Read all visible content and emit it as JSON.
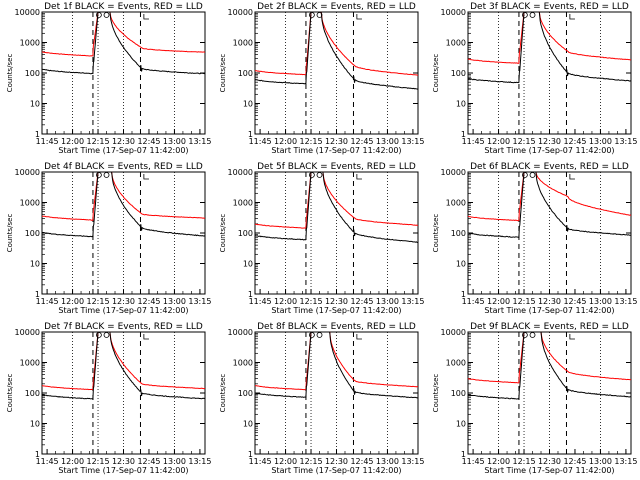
{
  "figure": {
    "xlabel": "Start Time (17-Sep-07 11:42:00)",
    "ylabel": "Counts/sec"
  },
  "chart_data": {
    "type": "line",
    "grid_rows": 3,
    "grid_cols": 3,
    "x_ticks": [
      "11:45",
      "12:00",
      "12:15",
      "12:30",
      "12:45",
      "13:00",
      "13:15"
    ],
    "x_tick_minutes": [
      3,
      18,
      33,
      48,
      63,
      78,
      93
    ],
    "xlim_minutes": [
      0,
      96
    ],
    "y_ticks": [
      "1",
      "10",
      "100",
      "1000",
      "10000"
    ],
    "y_tick_values": [
      1,
      10,
      100,
      1000,
      10000
    ],
    "ylim": [
      1,
      10000
    ],
    "yscale": "log",
    "dashed_lines_minutes": [
      30,
      58
    ],
    "dotted_lines_minutes": [
      18,
      33,
      48,
      78
    ],
    "series_colors": {
      "events": "#000000",
      "lld": "#ff0000"
    },
    "legend": {
      "events": "BLACK = Events",
      "lld": "RED = LLD"
    },
    "panels": [
      {
        "title": "Det 1f BLACK = Events, RED = LLD",
        "lld_pre": 450,
        "events_pre": 120,
        "peak_start": 33,
        "peak_end": 40,
        "lld_post": 650,
        "lld_end": 480,
        "events_post": 140,
        "events_end": 95
      },
      {
        "title": "Det 2f BLACK = Events, RED = LLD",
        "lld_pre": 110,
        "events_pre": 55,
        "peak_start": 33,
        "peak_end": 39,
        "lld_post": 170,
        "lld_end": 85,
        "events_post": 60,
        "events_end": 30
      },
      {
        "title": "Det 3f BLACK = Events, RED = LLD",
        "lld_pre": 260,
        "events_pre": 60,
        "peak_start": 33,
        "peak_end": 42,
        "lld_post": 500,
        "lld_end": 270,
        "events_post": 100,
        "events_end": 55
      },
      {
        "title": "Det 4f BLACK = Events, RED = LLD",
        "lld_pre": 330,
        "events_pre": 95,
        "peak_start": 33,
        "peak_end": 41,
        "lld_post": 420,
        "lld_end": 310,
        "events_post": 150,
        "events_end": 80
      },
      {
        "title": "Det 5f BLACK = Events, RED = LLD",
        "lld_pre": 180,
        "events_pre": 75,
        "peak_start": 33,
        "peak_end": 40,
        "lld_post": 300,
        "lld_end": 180,
        "events_post": 100,
        "events_end": 50
      },
      {
        "title": "Det 6f BLACK = Events, RED = LLD",
        "lld_pre": 320,
        "events_pre": 90,
        "peak_start": 33,
        "peak_end": 40,
        "lld_post": 1500,
        "lld_end": 380,
        "events_post": 140,
        "events_end": 85
      },
      {
        "title": "Det 7f BLACK = Events, RED = LLD",
        "lld_pre": 160,
        "events_pre": 80,
        "peak_start": 33,
        "peak_end": 40,
        "lld_post": 200,
        "lld_end": 140,
        "events_post": 100,
        "events_end": 65
      },
      {
        "title": "Det 8f BLACK = Events, RED = LLD",
        "lld_pre": 160,
        "events_pre": 90,
        "peak_start": 33,
        "peak_end": 44,
        "lld_post": 250,
        "lld_end": 160,
        "events_post": 110,
        "events_end": 70
      },
      {
        "title": "Det 9f BLACK = Events, RED = LLD",
        "lld_pre": 270,
        "events_pre": 80,
        "peak_start": 33,
        "peak_end": 43,
        "lld_post": 500,
        "lld_end": 270,
        "events_post": 130,
        "events_end": 75
      }
    ]
  }
}
